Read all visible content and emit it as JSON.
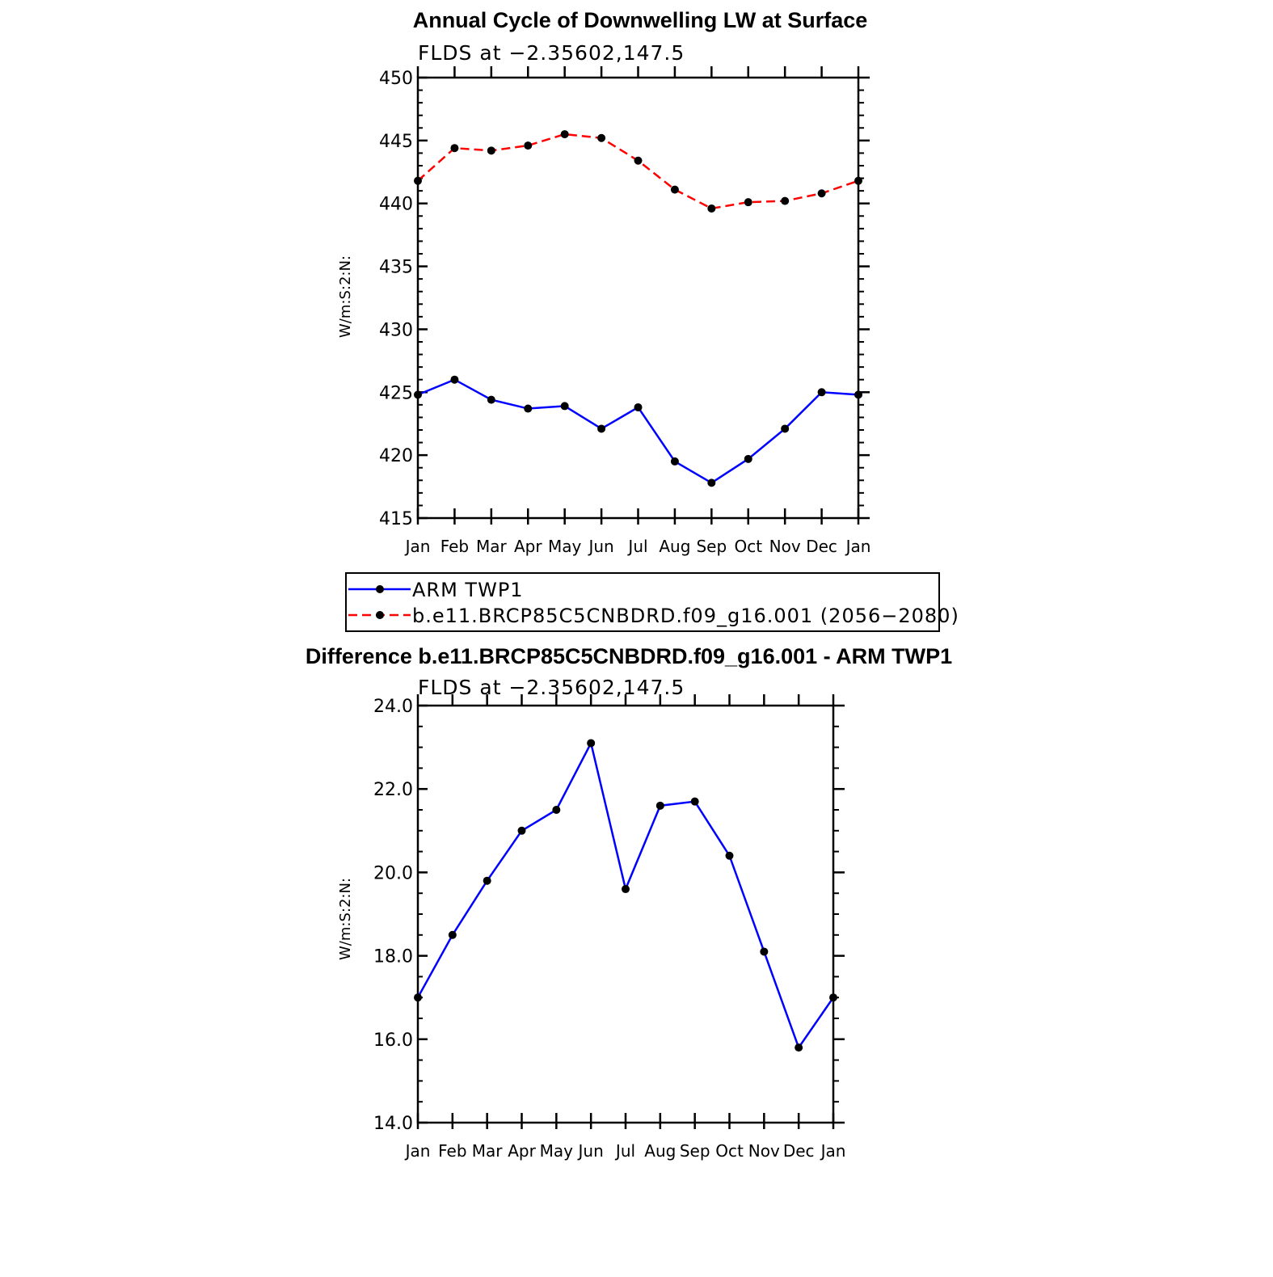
{
  "chart_data": [
    {
      "type": "line",
      "title": "Annual Cycle of Downwelling LW at Surface",
      "subtitle": "FLDS at −2.35602,147.5",
      "ylabel": "W/m:S:2:N:",
      "xlabel": "",
      "categories": [
        "Jan",
        "Feb",
        "Mar",
        "Apr",
        "May",
        "Jun",
        "Jul",
        "Aug",
        "Sep",
        "Oct",
        "Nov",
        "Dec",
        "Jan"
      ],
      "ylim": [
        415,
        450
      ],
      "yticks": [
        "415",
        "420",
        "425",
        "430",
        "435",
        "440",
        "445",
        "450"
      ],
      "grid": false,
      "legend_position": "below",
      "series": [
        {
          "name": "ARM  TWP1",
          "color": "#0000ff",
          "dash": "solid",
          "values": [
            424.8,
            426.0,
            424.4,
            423.7,
            423.9,
            422.1,
            423.8,
            419.5,
            417.8,
            419.7,
            422.1,
            425.0,
            424.8
          ]
        },
        {
          "name": "b.e11.BRCP85C5CNBDRD.f09_g16.001 (2056−2080)",
          "color": "#ff0000",
          "dash": "dashed",
          "values": [
            441.8,
            444.4,
            444.2,
            444.6,
            445.5,
            445.2,
            443.4,
            441.1,
            439.6,
            440.1,
            440.2,
            440.8,
            441.8
          ]
        }
      ]
    },
    {
      "type": "line",
      "title": "Difference b.e11.BRCP85C5CNBDRD.f09_g16.001 - ARM TWP1",
      "subtitle": "FLDS at −2.35602,147.5",
      "ylabel": "W/m:S:2:N:",
      "xlabel": "",
      "categories": [
        "Jan",
        "Feb",
        "Mar",
        "Apr",
        "May",
        "Jun",
        "Jul",
        "Aug",
        "Sep",
        "Oct",
        "Nov",
        "Dec",
        "Jan"
      ],
      "ylim": [
        14,
        24
      ],
      "yticks": [
        "14.0",
        "16.0",
        "18.0",
        "20.0",
        "22.0",
        "24.0"
      ],
      "grid": false,
      "series": [
        {
          "color": "#0000ff",
          "dash": "solid",
          "values": [
            17.0,
            18.5,
            19.8,
            21.0,
            21.5,
            23.1,
            19.6,
            21.6,
            21.7,
            20.4,
            18.1,
            15.8,
            17.0
          ]
        }
      ]
    }
  ]
}
